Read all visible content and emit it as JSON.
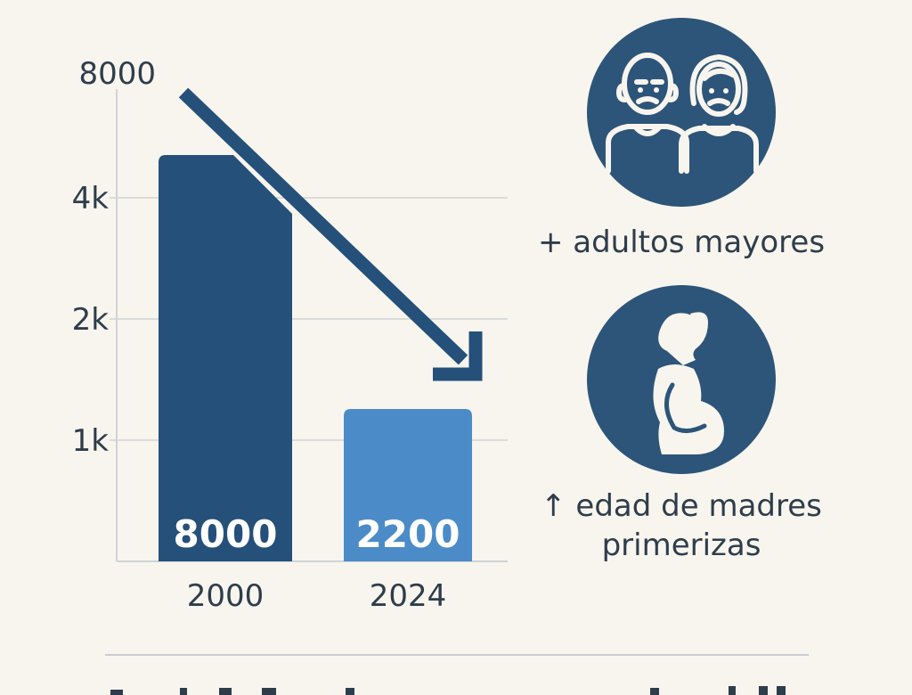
{
  "chart_data": {
    "type": "bar",
    "categories": [
      "2000",
      "2024"
    ],
    "values": [
      8000,
      2200
    ],
    "data_labels": [
      "8000",
      "2200"
    ],
    "y_tick_labels": [
      "8000",
      "4k",
      "2k",
      "1k"
    ],
    "trend": "decreasing",
    "colors": {
      "bar_2000": "#24507a",
      "bar_2024": "#4b8cc8",
      "arrow": "#24507a",
      "grid": "#cfd3d6"
    },
    "grid": true
  },
  "side": {
    "item1": {
      "icon": "elderly-couple-icon",
      "label": "+ adultos mayores"
    },
    "item2": {
      "icon": "pregnant-woman-icon",
      "label": "↑ edad de madres\nprimerizas"
    }
  },
  "colors": {
    "background": "#f8f5ee",
    "circle": "#2d5579",
    "text": "#2e3d4b"
  }
}
